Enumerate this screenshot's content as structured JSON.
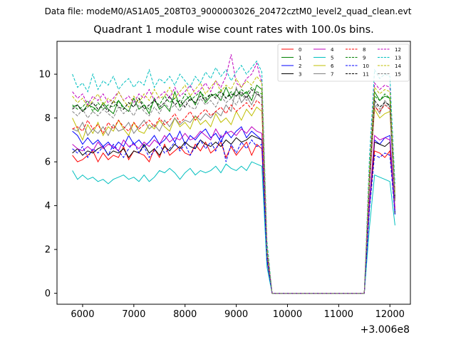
{
  "figure": {
    "suptitle": "Data file: modeM0/AS1A05_208T03_9000003026_20472cztM0_level2_quad_clean.evt"
  },
  "chart_data": {
    "type": "line",
    "title": "Quadrant 1 module wise count rates with 100.0s bins.",
    "xlabel": "",
    "ylabel": "",
    "x_offset_label": "+3.006e8",
    "xlim": [
      5500,
      12400
    ],
    "ylim": [
      -0.5,
      11.5
    ],
    "xticks": [
      6000,
      7000,
      8000,
      9000,
      10000,
      11000,
      12000
    ],
    "yticks": [
      0,
      2,
      4,
      6,
      8,
      10
    ],
    "legend_placement": "upper-right",
    "legend_columns": 4,
    "grid": false,
    "x": [
      5800,
      5900,
      6000,
      6100,
      6200,
      6300,
      6400,
      6500,
      6600,
      6700,
      6800,
      6900,
      7000,
      7100,
      7200,
      7300,
      7400,
      7500,
      7600,
      7700,
      7800,
      7900,
      8000,
      8100,
      8200,
      8300,
      8400,
      8500,
      8600,
      8700,
      8800,
      8900,
      9000,
      9100,
      9200,
      9300,
      9400,
      9500,
      9600,
      9700,
      9800,
      9900,
      10000,
      10100,
      10200,
      10300,
      10400,
      10500,
      10600,
      10700,
      10800,
      10900,
      11000,
      11100,
      11200,
      11300,
      11400,
      11500,
      11600,
      11700,
      11800,
      11900,
      12000,
      12100
    ],
    "series": [
      {
        "name": "0",
        "color": "#ff0000",
        "dash": false,
        "values": [
          6.3,
          6.0,
          6.1,
          6.3,
          6.5,
          6.0,
          6.4,
          6.1,
          6.3,
          6.2,
          6.7,
          6.1,
          6.5,
          6.4,
          6.3,
          6.0,
          6.6,
          6.2,
          6.8,
          6.3,
          6.5,
          6.7,
          6.4,
          6.3,
          6.8,
          6.5,
          6.9,
          6.4,
          6.6,
          6.9,
          6.2,
          6.7,
          6.3,
          6.6,
          6.9,
          6.3,
          6.8,
          6.6,
          1.5,
          0,
          0,
          0,
          0,
          0,
          0,
          0,
          0,
          0,
          0,
          0,
          0,
          0,
          0,
          0,
          0,
          0,
          0,
          0,
          4.0,
          6.5,
          6.4,
          6.2,
          6.5,
          3.9
        ]
      },
      {
        "name": "1",
        "color": "#008000",
        "dash": false,
        "values": [
          8.5,
          8.6,
          8.3,
          8.6,
          8.5,
          8.3,
          8.7,
          8.4,
          8.2,
          8.8,
          8.5,
          8.3,
          8.9,
          8.4,
          8.6,
          8.2,
          8.9,
          8.4,
          8.6,
          8.3,
          9.2,
          8.5,
          8.8,
          9.0,
          8.6,
          9.2,
          8.7,
          9.0,
          9.1,
          8.8,
          9.4,
          8.9,
          9.3,
          9.0,
          9.2,
          8.8,
          9.5,
          9.3,
          1.8,
          0,
          0,
          0,
          0,
          0,
          0,
          0,
          0,
          0,
          0,
          0,
          0,
          0,
          0,
          0,
          0,
          0,
          0,
          0,
          5.2,
          9.2,
          8.8,
          9.0,
          8.9,
          4.3
        ]
      },
      {
        "name": "2",
        "color": "#0000ff",
        "dash": false,
        "values": [
          7.4,
          7.2,
          6.8,
          7.1,
          6.8,
          7.0,
          6.7,
          6.9,
          6.6,
          6.9,
          6.7,
          7.2,
          6.8,
          7.0,
          6.7,
          6.9,
          7.2,
          6.8,
          7.0,
          7.3,
          6.9,
          7.4,
          6.8,
          7.2,
          7.0,
          7.3,
          7.5,
          7.1,
          7.3,
          6.9,
          7.4,
          7.1,
          7.4,
          7.6,
          7.1,
          7.4,
          7.2,
          7.0,
          1.6,
          0,
          0,
          0,
          0,
          0,
          0,
          0,
          0,
          0,
          0,
          0,
          0,
          0,
          0,
          0,
          0,
          0,
          0,
          0,
          4.2,
          7.0,
          6.8,
          7.1,
          7.2,
          3.7
        ]
      },
      {
        "name": "3",
        "color": "#000000",
        "dash": false,
        "values": [
          6.4,
          6.6,
          6.3,
          6.5,
          6.4,
          6.6,
          6.7,
          6.3,
          6.5,
          6.4,
          6.6,
          6.2,
          6.5,
          6.4,
          6.8,
          6.4,
          6.6,
          6.3,
          6.7,
          6.5,
          6.8,
          6.6,
          6.9,
          6.7,
          6.6,
          7.0,
          6.8,
          6.7,
          6.9,
          6.7,
          7.0,
          6.8,
          7.1,
          6.9,
          7.0,
          7.2,
          7.1,
          7.0,
          1.6,
          0,
          0,
          0,
          0,
          0,
          0,
          0,
          0,
          0,
          0,
          0,
          0,
          0,
          0,
          0,
          0,
          0,
          0,
          0,
          4.0,
          6.9,
          6.8,
          6.7,
          6.9,
          3.6
        ]
      },
      {
        "name": "4",
        "color": "#bf00bf",
        "dash": false,
        "values": [
          6.8,
          6.6,
          6.5,
          6.7,
          6.5,
          6.9,
          6.6,
          6.8,
          6.7,
          6.5,
          7.0,
          6.7,
          6.8,
          6.6,
          6.9,
          6.7,
          7.0,
          6.8,
          7.2,
          6.9,
          7.1,
          7.0,
          7.3,
          7.0,
          7.1,
          7.4,
          7.2,
          7.0,
          7.5,
          7.1,
          7.3,
          7.4,
          7.2,
          7.5,
          7.3,
          7.6,
          7.4,
          7.3,
          1.7,
          0,
          0,
          0,
          0,
          0,
          0,
          0,
          0,
          0,
          0,
          0,
          0,
          0,
          0,
          0,
          0,
          0,
          0,
          0,
          4.1,
          7.2,
          7.0,
          7.1,
          7.0,
          3.8
        ]
      },
      {
        "name": "5",
        "color": "#00bfbf",
        "dash": false,
        "values": [
          5.6,
          5.2,
          5.4,
          5.2,
          5.3,
          5.1,
          5.2,
          5.0,
          5.2,
          5.3,
          5.4,
          5.2,
          5.3,
          5.1,
          5.4,
          5.1,
          5.3,
          5.6,
          5.5,
          5.7,
          5.5,
          5.2,
          5.5,
          5.7,
          5.4,
          5.6,
          5.5,
          5.6,
          5.8,
          5.5,
          5.9,
          5.7,
          5.6,
          5.8,
          5.6,
          6.0,
          5.9,
          5.8,
          1.2,
          0,
          0,
          0,
          0,
          0,
          0,
          0,
          0,
          0,
          0,
          0,
          0,
          0,
          0,
          0,
          0,
          0,
          0,
          0,
          3.0,
          5.4,
          5.3,
          5.2,
          5.1,
          3.1
        ]
      },
      {
        "name": "6",
        "color": "#bfbf00",
        "dash": false,
        "values": [
          8.0,
          7.5,
          7.0,
          7.7,
          7.3,
          7.8,
          7.2,
          7.6,
          7.4,
          7.9,
          7.5,
          7.2,
          7.8,
          7.4,
          7.3,
          7.7,
          7.5,
          7.9,
          7.6,
          7.4,
          8.0,
          7.6,
          7.8,
          7.5,
          8.1,
          7.7,
          7.9,
          7.6,
          8.2,
          7.8,
          8.0,
          7.7,
          8.3,
          7.9,
          8.4,
          8.1,
          8.5,
          8.3,
          1.8,
          0,
          0,
          0,
          0,
          0,
          0,
          0,
          0,
          0,
          0,
          0,
          0,
          0,
          0,
          0,
          0,
          0,
          0,
          0,
          5.0,
          8.4,
          8.0,
          8.2,
          8.3,
          4.2
        ]
      },
      {
        "name": "7",
        "color": "#808080",
        "dash": false,
        "values": [
          7.5,
          7.4,
          7.8,
          7.2,
          7.5,
          7.3,
          7.6,
          7.2,
          7.7,
          7.4,
          7.5,
          7.8,
          7.3,
          7.6,
          7.9,
          7.5,
          7.7,
          7.4,
          7.9,
          7.6,
          8.0,
          7.7,
          7.9,
          7.8,
          8.1,
          7.9,
          8.2,
          8.0,
          8.3,
          8.1,
          8.6,
          8.3,
          9.4,
          8.7,
          9.0,
          8.6,
          9.1,
          8.9,
          1.9,
          0,
          0,
          0,
          0,
          0,
          0,
          0,
          0,
          0,
          0,
          0,
          0,
          0,
          0,
          0,
          0,
          0,
          0,
          0,
          4.8,
          8.6,
          8.2,
          8.8,
          8.5,
          4.2
        ]
      },
      {
        "name": "8",
        "color": "#ff0000",
        "dash": true,
        "values": [
          7.5,
          7.6,
          7.4,
          7.9,
          7.5,
          7.7,
          7.3,
          7.8,
          7.5,
          7.9,
          7.6,
          7.4,
          7.8,
          7.5,
          7.7,
          7.9,
          7.6,
          8.0,
          7.7,
          7.9,
          8.2,
          7.8,
          8.0,
          8.3,
          7.9,
          8.2,
          8.4,
          8.1,
          8.3,
          8.5,
          8.2,
          8.6,
          8.3,
          8.5,
          8.7,
          8.4,
          8.8,
          8.6,
          1.9,
          0,
          0,
          0,
          0,
          0,
          0,
          0,
          0,
          0,
          0,
          0,
          0,
          0,
          0,
          0,
          0,
          0,
          0,
          0,
          5.0,
          8.5,
          8.3,
          8.6,
          8.4,
          4.3
        ]
      },
      {
        "name": "9",
        "color": "#008000",
        "dash": true,
        "values": [
          8.6,
          8.4,
          8.5,
          8.8,
          8.3,
          8.7,
          8.4,
          8.6,
          8.5,
          8.8,
          8.4,
          8.7,
          8.5,
          8.9,
          8.6,
          8.4,
          8.8,
          8.6,
          9.0,
          8.7,
          8.9,
          8.6,
          9.1,
          8.8,
          9.0,
          9.2,
          8.9,
          9.1,
          9.0,
          9.3,
          8.9,
          9.2,
          9.0,
          9.3,
          9.1,
          9.4,
          9.2,
          9.1,
          2.0,
          0,
          0,
          0,
          0,
          0,
          0,
          0,
          0,
          0,
          0,
          0,
          0,
          0,
          0,
          0,
          0,
          0,
          0,
          0,
          5.3,
          9.0,
          8.8,
          9.1,
          8.9,
          4.4
        ]
      },
      {
        "name": "10",
        "color": "#0000ff",
        "dash": true,
        "values": [
          6.6,
          6.4,
          6.7,
          6.2,
          6.6,
          6.4,
          6.7,
          6.3,
          6.8,
          6.5,
          6.2,
          6.6,
          6.9,
          6.4,
          6.7,
          6.2,
          6.5,
          6.8,
          6.4,
          6.6,
          6.9,
          6.5,
          6.8,
          6.3,
          6.7,
          7.0,
          6.6,
          6.9,
          6.5,
          7.2,
          6.0,
          6.8,
          6.4,
          6.9,
          6.6,
          7.0,
          6.7,
          6.8,
          1.5,
          0,
          0,
          0,
          0,
          0,
          0,
          0,
          0,
          0,
          0,
          0,
          0,
          0,
          0,
          0,
          0,
          0,
          0,
          0,
          3.8,
          6.3,
          6.2,
          6.4,
          6.3,
          3.6
        ]
      },
      {
        "name": "11",
        "color": "#000000",
        "dash": true,
        "values": [
          8.4,
          8.6,
          8.3,
          8.5,
          8.7,
          8.4,
          8.6,
          8.3,
          8.8,
          8.5,
          8.4,
          8.7,
          8.5,
          8.9,
          8.4,
          8.6,
          8.8,
          8.5,
          8.7,
          9.0,
          8.6,
          8.8,
          8.5,
          8.9,
          8.7,
          9.0,
          8.8,
          9.1,
          8.9,
          9.2,
          8.9,
          9.1,
          9.0,
          9.2,
          8.9,
          9.3,
          9.1,
          9.0,
          1.9,
          0,
          0,
          0,
          0,
          0,
          0,
          0,
          0,
          0,
          0,
          0,
          0,
          0,
          0,
          0,
          0,
          0,
          0,
          0,
          5.1,
          8.8,
          8.5,
          8.7,
          8.6,
          4.3
        ]
      },
      {
        "name": "12",
        "color": "#bf00bf",
        "dash": true,
        "values": [
          9.2,
          8.9,
          9.1,
          8.6,
          9.0,
          8.8,
          9.1,
          8.7,
          8.9,
          9.2,
          8.8,
          9.0,
          8.7,
          9.1,
          8.9,
          9.3,
          8.8,
          9.0,
          9.2,
          8.9,
          9.4,
          9.0,
          9.2,
          9.5,
          9.1,
          9.3,
          9.6,
          9.2,
          9.7,
          9.4,
          9.9,
          10.9,
          9.6,
          9.4,
          9.8,
          10.0,
          10.5,
          9.6,
          2.2,
          0,
          0,
          0,
          0,
          0,
          0,
          0,
          0,
          0,
          0,
          0,
          0,
          0,
          0,
          0,
          0,
          0,
          0,
          0,
          5.8,
          9.6,
          9.3,
          9.5,
          9.4,
          4.7
        ]
      },
      {
        "name": "13",
        "color": "#00bfbf",
        "dash": true,
        "values": [
          10.0,
          9.4,
          9.6,
          9.2,
          10.0,
          9.3,
          9.7,
          9.5,
          9.9,
          9.3,
          9.6,
          9.8,
          9.4,
          9.7,
          9.5,
          10.2,
          9.4,
          9.8,
          9.6,
          9.9,
          9.5,
          10.0,
          9.7,
          9.4,
          9.9,
          9.6,
          10.1,
          9.8,
          10.3,
          9.9,
          10.2,
          9.7,
          10.1,
          10.4,
          10.0,
          10.3,
          10.6,
          10.1,
          2.4,
          0,
          0,
          0,
          0,
          0,
          0,
          0,
          0,
          0,
          0,
          0,
          0,
          0,
          0,
          0,
          0,
          0,
          0,
          0,
          6.2,
          10.2,
          9.8,
          10.0,
          9.9,
          5.0
        ]
      },
      {
        "name": "14",
        "color": "#bfbf00",
        "dash": true,
        "values": [
          9.0,
          8.7,
          8.9,
          8.5,
          8.8,
          9.1,
          8.6,
          8.9,
          8.7,
          9.2,
          8.8,
          8.5,
          9.0,
          8.7,
          9.1,
          8.8,
          9.3,
          8.9,
          9.0,
          9.4,
          8.9,
          9.2,
          9.5,
          9.0,
          9.3,
          9.6,
          9.1,
          9.4,
          9.7,
          9.2,
          9.5,
          9.3,
          9.8,
          9.4,
          9.7,
          9.5,
          9.9,
          9.6,
          2.1,
          0,
          0,
          0,
          0,
          0,
          0,
          0,
          0,
          0,
          0,
          0,
          0,
          0,
          0,
          0,
          0,
          0,
          0,
          0,
          5.6,
          9.4,
          9.1,
          9.3,
          9.2,
          4.6
        ]
      },
      {
        "name": "15",
        "color": "#808080",
        "dash": true,
        "values": [
          8.3,
          8.1,
          8.4,
          8.0,
          8.3,
          8.1,
          8.4,
          8.2,
          8.0,
          8.5,
          8.2,
          8.4,
          8.1,
          8.6,
          8.3,
          8.1,
          8.5,
          8.2,
          8.7,
          8.4,
          8.6,
          8.3,
          8.8,
          8.5,
          8.4,
          8.9,
          8.6,
          8.8,
          8.5,
          9.0,
          8.7,
          8.9,
          8.6,
          9.1,
          8.8,
          9.0,
          9.2,
          8.9,
          1.9,
          0,
          0,
          0,
          0,
          0,
          0,
          0,
          0,
          0,
          0,
          0,
          0,
          0,
          0,
          0,
          0,
          0,
          0,
          0,
          5.0,
          8.7,
          8.4,
          8.6,
          8.5,
          4.3
        ]
      }
    ]
  }
}
